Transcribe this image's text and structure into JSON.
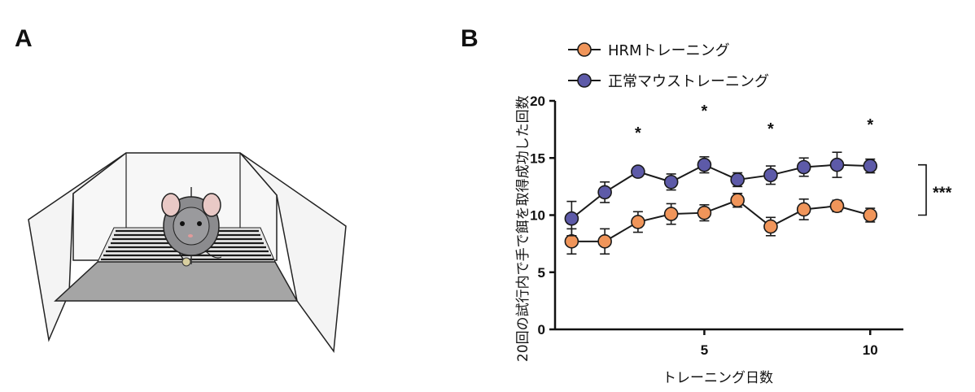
{
  "panels": {
    "a_label": "A",
    "b_label": "B"
  },
  "colors": {
    "hrm": "#f0955a",
    "normal": "#5d5aa8",
    "marker_stroke": "#1a1a1a"
  },
  "chart_data": {
    "type": "line",
    "xlabel": "トレーニング日数",
    "ylabel": "20回の試行内で手で餌を取得成功した回数",
    "xlim": [
      0.5,
      11
    ],
    "ylim": [
      0,
      20
    ],
    "x_ticks": [
      5,
      10
    ],
    "y_ticks": [
      0,
      5,
      10,
      15,
      20
    ],
    "x": [
      1,
      2,
      3,
      4,
      5,
      6,
      7,
      8,
      9,
      10
    ],
    "series": [
      {
        "name": "HRMトレーニング",
        "color": "#f0955a",
        "values": [
          7.7,
          7.7,
          9.4,
          10.1,
          10.2,
          11.3,
          9.0,
          10.5,
          10.8,
          10.0
        ],
        "errors": [
          1.1,
          1.1,
          0.9,
          0.9,
          0.7,
          0.6,
          0.8,
          0.9,
          0.5,
          0.6
        ]
      },
      {
        "name": "正常マウストレーニング",
        "color": "#5d5aa8",
        "values": [
          9.7,
          12.0,
          13.8,
          12.9,
          14.4,
          13.1,
          13.5,
          14.2,
          14.4,
          14.3
        ],
        "errors": [
          1.5,
          0.9,
          0.3,
          0.7,
          0.7,
          0.6,
          0.8,
          0.8,
          1.1,
          0.6
        ]
      }
    ],
    "significance": [
      {
        "x": 3,
        "label": "*"
      },
      {
        "x": 5,
        "label": "*"
      },
      {
        "x": 7,
        "label": "*"
      },
      {
        "x": 10,
        "label": "*"
      }
    ],
    "bracket": {
      "from": 10,
      "to": 14.4,
      "label": "***"
    },
    "legend_position": "top-left"
  }
}
